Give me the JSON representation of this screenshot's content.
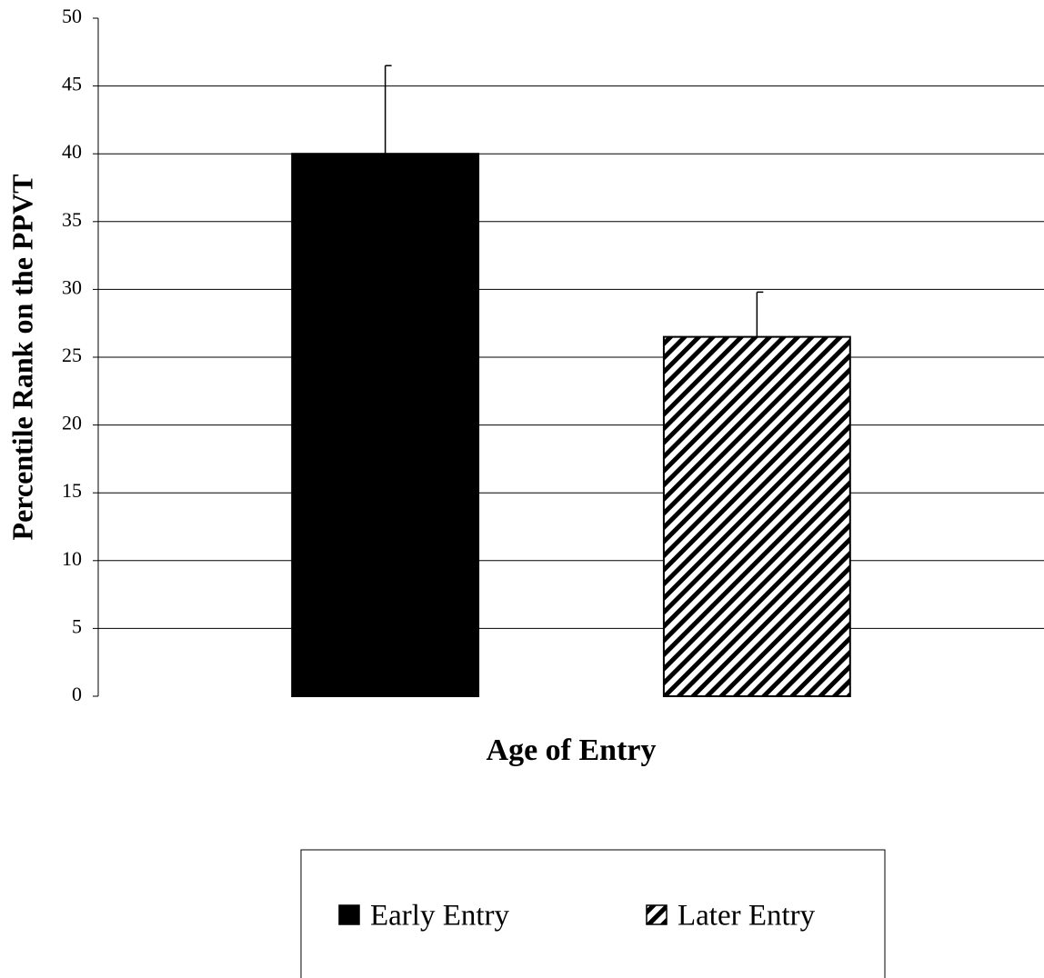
{
  "chart_data": {
    "type": "bar",
    "y_label": "Percentile Rank on the PPVT",
    "x_label": "Age of Entry",
    "categories": [
      null
    ],
    "series": [
      {
        "name": "Early Entry",
        "color": "#000000",
        "fill": "solid",
        "values": [
          40
        ],
        "errors": [
          6.5
        ]
      },
      {
        "name": "Later Entry",
        "color": "#000000",
        "fill": "hatch",
        "values": [
          26.5
        ],
        "errors": [
          3.3
        ]
      }
    ],
    "ylim": [
      0,
      50
    ],
    "yticks": [
      0,
      5,
      10,
      15,
      20,
      25,
      30,
      35,
      40,
      45,
      50
    ],
    "grid": true,
    "legend": "bottom"
  }
}
